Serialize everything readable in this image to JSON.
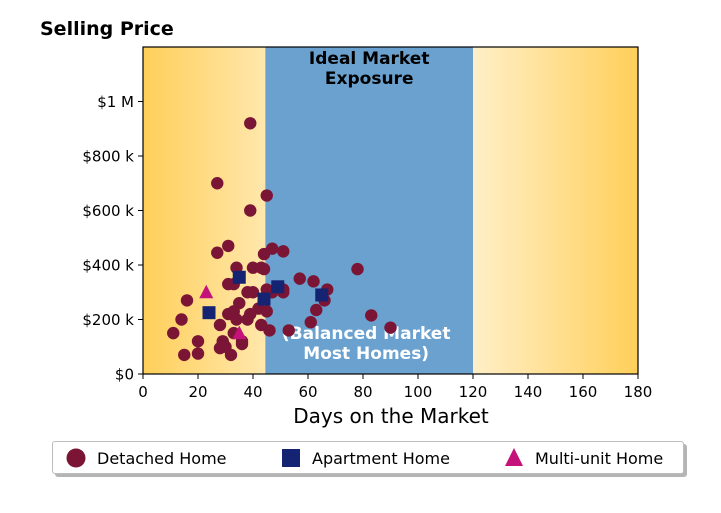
{
  "y_axis_title": "Selling Price",
  "chart_data": {
    "type": "scatter",
    "xlabel": "Days on the Market",
    "ylabel": "Selling Price",
    "xlim": [
      0,
      180
    ],
    "ylim": [
      0,
      1200000
    ],
    "x_ticks": [
      0,
      20,
      40,
      60,
      80,
      100,
      120,
      140,
      160,
      180
    ],
    "y_ticks": [
      0,
      200000,
      400000,
      600000,
      800000,
      1000000
    ],
    "y_tick_labels": [
      "$0",
      "$200 k",
      "$400 k",
      "$600 k",
      "$800 k",
      "$1 M"
    ],
    "legend_position": "bottom",
    "regions": [
      {
        "label": "Ideal Market\nExposure",
        "x_range": [
          44.5,
          120
        ],
        "color": "#6aa1cf"
      },
      {
        "label": "(Balanced Market\nMost Homes)",
        "x_range": [
          44.5,
          120
        ],
        "color": "#6aa1cf"
      }
    ],
    "background_gradient": {
      "edge_color": "#ffcf5a",
      "center_color": "#ffffff"
    },
    "series": [
      {
        "name": "Detached Home",
        "marker": "circle",
        "color": "#7b1535",
        "points": [
          [
            11,
            150000
          ],
          [
            14,
            200000
          ],
          [
            15,
            70000
          ],
          [
            16,
            270000
          ],
          [
            20,
            120000
          ],
          [
            20,
            75000
          ],
          [
            27,
            700000
          ],
          [
            27,
            445000
          ],
          [
            28,
            180000
          ],
          [
            28,
            95000
          ],
          [
            29,
            120000
          ],
          [
            30,
            100000
          ],
          [
            31,
            470000
          ],
          [
            31,
            330000
          ],
          [
            31,
            220000
          ],
          [
            32,
            70000
          ],
          [
            33,
            150000
          ],
          [
            33,
            330000
          ],
          [
            33,
            230000
          ],
          [
            34,
            390000
          ],
          [
            34,
            200000
          ],
          [
            35,
            260000
          ],
          [
            36,
            120000
          ],
          [
            36,
            110000
          ],
          [
            38,
            300000
          ],
          [
            38,
            200000
          ],
          [
            39,
            920000
          ],
          [
            39,
            600000
          ],
          [
            39,
            220000
          ],
          [
            40,
            390000
          ],
          [
            40,
            300000
          ],
          [
            42,
            240000
          ],
          [
            43,
            390000
          ],
          [
            43,
            180000
          ],
          [
            44,
            385000
          ],
          [
            44,
            440000
          ],
          [
            45,
            310000
          ],
          [
            45,
            230000
          ],
          [
            45,
            655000
          ],
          [
            46,
            160000
          ],
          [
            47,
            460000
          ],
          [
            47,
            300000
          ],
          [
            51,
            450000
          ],
          [
            51,
            310000
          ],
          [
            51,
            300000
          ],
          [
            57,
            350000
          ],
          [
            61,
            190000
          ],
          [
            62,
            340000
          ],
          [
            63,
            235000
          ],
          [
            66,
            270000
          ],
          [
            67,
            310000
          ],
          [
            78,
            385000
          ],
          [
            83,
            215000
          ],
          [
            90,
            170000
          ],
          [
            53,
            160000
          ]
        ]
      },
      {
        "name": "Apartment Home",
        "marker": "square",
        "color": "#142372",
        "points": [
          [
            24,
            225000
          ],
          [
            35,
            355000
          ],
          [
            44,
            275000
          ],
          [
            49,
            320000
          ],
          [
            65,
            290000
          ]
        ]
      },
      {
        "name": "Multi-unit Home",
        "marker": "triangle",
        "color": "#c4127a",
        "points": [
          [
            23,
            300000
          ],
          [
            35,
            150000
          ]
        ]
      }
    ]
  }
}
